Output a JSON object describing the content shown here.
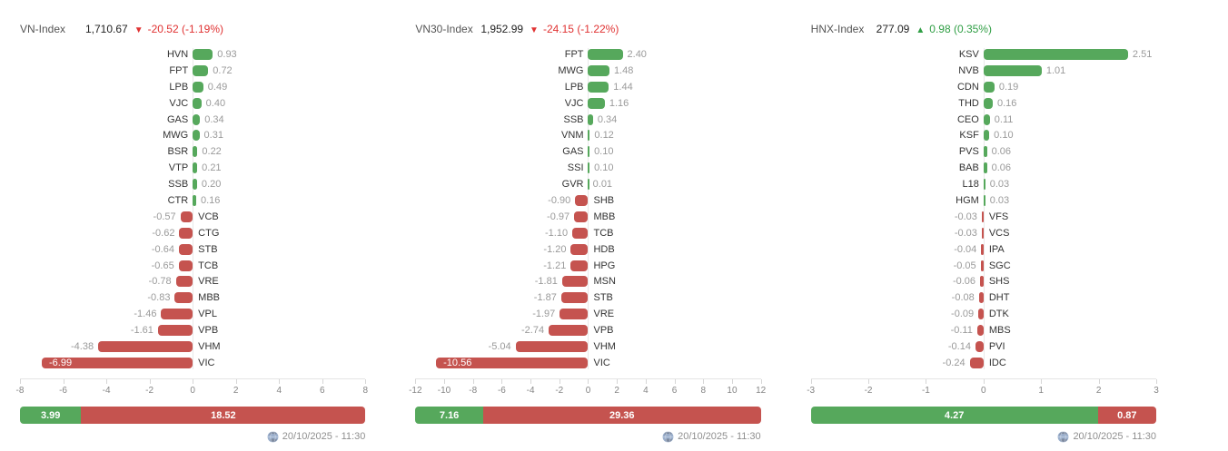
{
  "colors": {
    "positive": "#56a85c",
    "negative": "#c5534f",
    "header_up": "#2f9e44",
    "header_down": "#e03232",
    "ticker_label": "#333333",
    "value_label": "#9a9a9a",
    "axis_label": "#858585"
  },
  "chart_data": [
    {
      "type": "bar",
      "orientation": "horizontal",
      "title": "VN-Index contribution",
      "header": {
        "name": "VN-Index",
        "value": "1,710.67",
        "direction": "down",
        "arrow": "▼",
        "change": "-20.52 (-1.19%)"
      },
      "axis": {
        "min": -8,
        "max": 8,
        "step": 2
      },
      "bars": [
        {
          "ticker": "HVN",
          "value": 0.93
        },
        {
          "ticker": "FPT",
          "value": 0.72
        },
        {
          "ticker": "LPB",
          "value": 0.49
        },
        {
          "ticker": "VJC",
          "value": 0.4
        },
        {
          "ticker": "GAS",
          "value": 0.34
        },
        {
          "ticker": "MWG",
          "value": 0.31
        },
        {
          "ticker": "BSR",
          "value": 0.22
        },
        {
          "ticker": "VTP",
          "value": 0.21
        },
        {
          "ticker": "SSB",
          "value": 0.2
        },
        {
          "ticker": "CTR",
          "value": 0.16
        },
        {
          "ticker": "VCB",
          "value": -0.57
        },
        {
          "ticker": "CTG",
          "value": -0.62
        },
        {
          "ticker": "STB",
          "value": -0.64
        },
        {
          "ticker": "TCB",
          "value": -0.65
        },
        {
          "ticker": "VRE",
          "value": -0.78
        },
        {
          "ticker": "MBB",
          "value": -0.83
        },
        {
          "ticker": "VPL",
          "value": -1.46
        },
        {
          "ticker": "VPB",
          "value": -1.61
        },
        {
          "ticker": "VHM",
          "value": -4.38
        },
        {
          "ticker": "VIC",
          "value": -6.99
        }
      ],
      "summary": {
        "gainers": 3.99,
        "losers": 18.52
      },
      "timestamp": "20/10/2025 - 11:30"
    },
    {
      "type": "bar",
      "orientation": "horizontal",
      "title": "VN30-Index contribution",
      "header": {
        "name": "VN30-Index",
        "value": "1,952.99",
        "direction": "down",
        "arrow": "▼",
        "change": "-24.15 (-1.22%)"
      },
      "axis": {
        "min": -12,
        "max": 12,
        "step": 2
      },
      "bars": [
        {
          "ticker": "FPT",
          "value": 2.4
        },
        {
          "ticker": "MWG",
          "value": 1.48
        },
        {
          "ticker": "LPB",
          "value": 1.44
        },
        {
          "ticker": "VJC",
          "value": 1.16
        },
        {
          "ticker": "SSB",
          "value": 0.34
        },
        {
          "ticker": "VNM",
          "value": 0.12
        },
        {
          "ticker": "GAS",
          "value": 0.1
        },
        {
          "ticker": "SSI",
          "value": 0.1
        },
        {
          "ticker": "GVR",
          "value": 0.01
        },
        {
          "ticker": "SHB",
          "value": -0.9
        },
        {
          "ticker": "MBB",
          "value": -0.97
        },
        {
          "ticker": "TCB",
          "value": -1.1
        },
        {
          "ticker": "HDB",
          "value": -1.2
        },
        {
          "ticker": "HPG",
          "value": -1.21
        },
        {
          "ticker": "MSN",
          "value": -1.81
        },
        {
          "ticker": "STB",
          "value": -1.87
        },
        {
          "ticker": "VRE",
          "value": -1.97
        },
        {
          "ticker": "VPB",
          "value": -2.74
        },
        {
          "ticker": "VHM",
          "value": -5.04
        },
        {
          "ticker": "VIC",
          "value": -10.56
        }
      ],
      "summary": {
        "gainers": 7.16,
        "losers": 29.36
      },
      "timestamp": "20/10/2025 - 11:30"
    },
    {
      "type": "bar",
      "orientation": "horizontal",
      "title": "HNX-Index contribution",
      "header": {
        "name": "HNX-Index",
        "value": "277.09",
        "direction": "up",
        "arrow": "▲",
        "change": "0.98 (0.35%)"
      },
      "axis": {
        "min": -3,
        "max": 3,
        "step": 1
      },
      "bars": [
        {
          "ticker": "KSV",
          "value": 2.51
        },
        {
          "ticker": "NVB",
          "value": 1.01
        },
        {
          "ticker": "CDN",
          "value": 0.19
        },
        {
          "ticker": "THD",
          "value": 0.16
        },
        {
          "ticker": "CEO",
          "value": 0.11
        },
        {
          "ticker": "KSF",
          "value": 0.1
        },
        {
          "ticker": "PVS",
          "value": 0.06
        },
        {
          "ticker": "BAB",
          "value": 0.06
        },
        {
          "ticker": "L18",
          "value": 0.03
        },
        {
          "ticker": "HGM",
          "value": 0.03
        },
        {
          "ticker": "VFS",
          "value": -0.03
        },
        {
          "ticker": "VCS",
          "value": -0.03
        },
        {
          "ticker": "IPA",
          "value": -0.04
        },
        {
          "ticker": "SGC",
          "value": -0.05
        },
        {
          "ticker": "SHS",
          "value": -0.06
        },
        {
          "ticker": "DHT",
          "value": -0.08
        },
        {
          "ticker": "DTK",
          "value": -0.09
        },
        {
          "ticker": "MBS",
          "value": -0.11
        },
        {
          "ticker": "PVI",
          "value": -0.14
        },
        {
          "ticker": "IDC",
          "value": -0.24
        }
      ],
      "summary": {
        "gainers": 4.27,
        "losers": 0.87
      },
      "timestamp": "20/10/2025 - 11:30"
    }
  ]
}
